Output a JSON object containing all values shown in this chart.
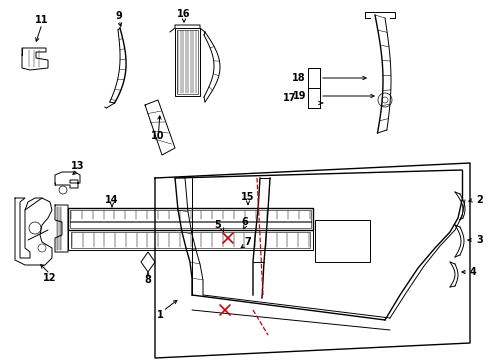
{
  "bg": "#ffffff",
  "fig_w": 4.89,
  "fig_h": 3.6,
  "dpi": 100,
  "lw": 0.7,
  "lw_thick": 1.0,
  "fs": 7.0,
  "color": "#000000",
  "red": "#cc0000"
}
